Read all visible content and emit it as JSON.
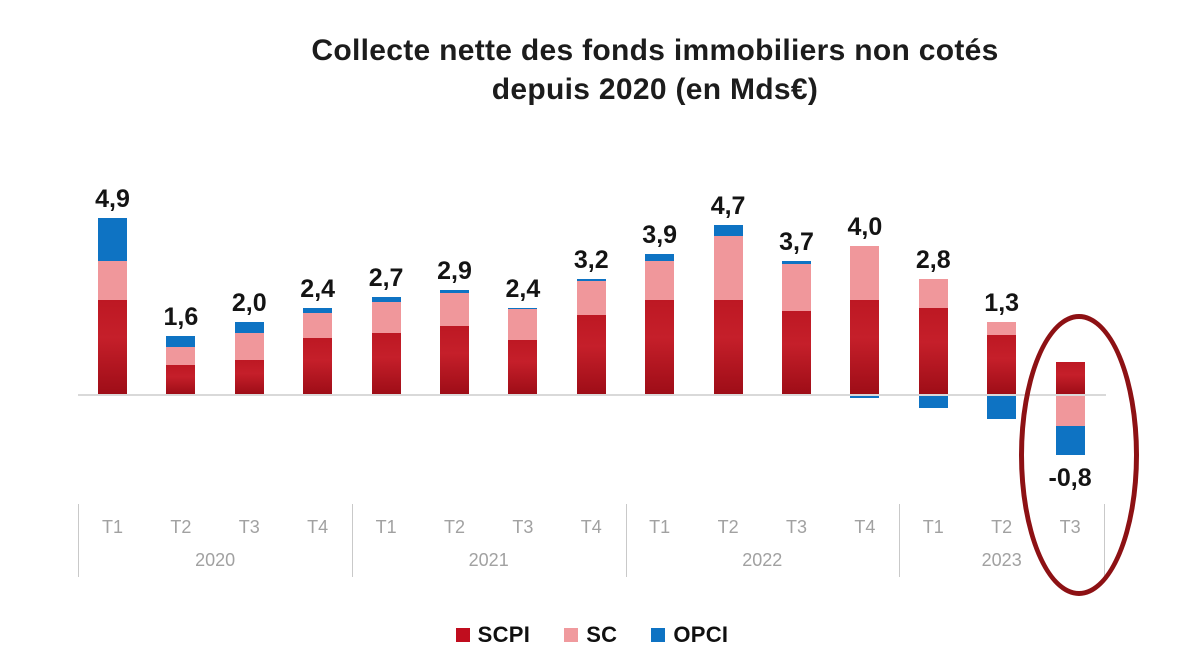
{
  "title": {
    "line1": "Collecte nette des fonds immobiliers non cotés",
    "line2": "depuis 2020 (en Mds€)"
  },
  "legend": [
    {
      "label": "SCPI",
      "color": "#c00d1e"
    },
    {
      "label": "SC",
      "color": "#f09a9e"
    },
    {
      "label": "OPCI",
      "color": "#0e73c3"
    }
  ],
  "chart_data": {
    "type": "bar",
    "stacked": true,
    "title": "Collecte nette des fonds immobiliers non cotés depuis 2020 (en Mds€)",
    "unit": "Mds€",
    "quarters": [
      "T1",
      "T2",
      "T3",
      "T4",
      "T1",
      "T2",
      "T3",
      "T4",
      "T1",
      "T2",
      "T3",
      "T4",
      "T1",
      "T2",
      "T3"
    ],
    "year_groups": [
      {
        "label": "2020",
        "from": 0,
        "to": 3
      },
      {
        "label": "2021",
        "from": 4,
        "to": 7
      },
      {
        "label": "2022",
        "from": 8,
        "to": 11
      },
      {
        "label": "2023",
        "from": 12,
        "to": 14
      }
    ],
    "series": [
      {
        "name": "SCPI",
        "color": "#bb1722",
        "values": [
          2.6,
          0.8,
          0.95,
          1.55,
          1.7,
          1.9,
          1.5,
          2.2,
          2.6,
          2.6,
          2.3,
          2.6,
          2.4,
          1.65,
          0.9
        ]
      },
      {
        "name": "SC",
        "color": "#f0979b",
        "values": [
          1.1,
          0.5,
          0.75,
          0.7,
          0.85,
          0.9,
          0.85,
          0.95,
          1.1,
          1.8,
          1.3,
          1.5,
          0.8,
          0.35,
          -0.9
        ]
      },
      {
        "name": "OPCI",
        "color": "#0e73c3",
        "values": [
          1.2,
          0.3,
          0.3,
          0.15,
          0.15,
          0.1,
          0.05,
          0.05,
          0.2,
          0.3,
          0.1,
          -0.1,
          -0.4,
          -0.7,
          -0.8
        ]
      }
    ],
    "totals": [
      4.9,
      1.6,
      2.0,
      2.4,
      2.7,
      2.9,
      2.4,
      3.2,
      3.9,
      4.7,
      3.7,
      4.0,
      2.8,
      1.3,
      -0.8
    ],
    "total_labels": [
      "4,9",
      "1,6",
      "2,0",
      "2,4",
      "2,7",
      "2,9",
      "2,4",
      "3,2",
      "3,9",
      "4,7",
      "3,7",
      "4,0",
      "2,8",
      "1,3",
      "-0,8"
    ],
    "ylim": [
      -1.8,
      5.2
    ],
    "grid": false,
    "legend_position": "bottom",
    "annotation": {
      "type": "ellipse",
      "target": "T3 2023",
      "color": "#8d1114"
    }
  }
}
